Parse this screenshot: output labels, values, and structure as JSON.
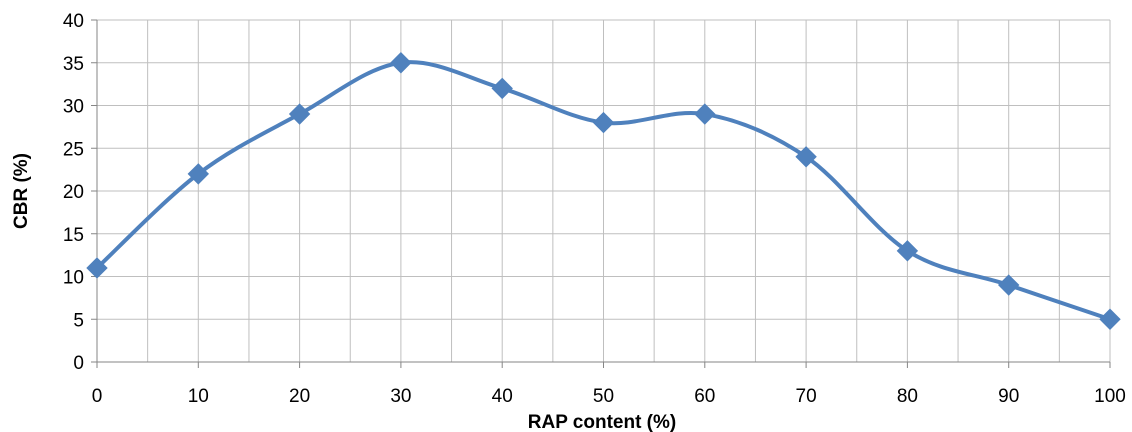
{
  "chart_data": {
    "type": "line",
    "x": [
      0,
      10,
      20,
      30,
      40,
      50,
      60,
      70,
      80,
      90,
      100
    ],
    "series": [
      {
        "values": [
          11,
          22,
          29,
          35,
          32,
          28,
          29,
          24,
          13,
          9,
          5
        ]
      }
    ],
    "xlabel": "RAP content (%)",
    "ylabel": "CBR (%)",
    "xlim": [
      0,
      100
    ],
    "ylim": [
      0,
      40
    ],
    "x_ticks": [
      "0",
      "10",
      "20",
      "30",
      "40",
      "50",
      "60",
      "70",
      "80",
      "90",
      "100"
    ],
    "y_ticks": [
      "0",
      "5",
      "10",
      "15",
      "20",
      "25",
      "30",
      "35",
      "40"
    ],
    "x_minor_grid_step": 5,
    "grid": true,
    "smooth": true,
    "marker": "diamond",
    "legend": "none",
    "colors": {
      "series": "#4f81bd",
      "grid": "#bfbfbf",
      "axis": "#868686"
    }
  }
}
